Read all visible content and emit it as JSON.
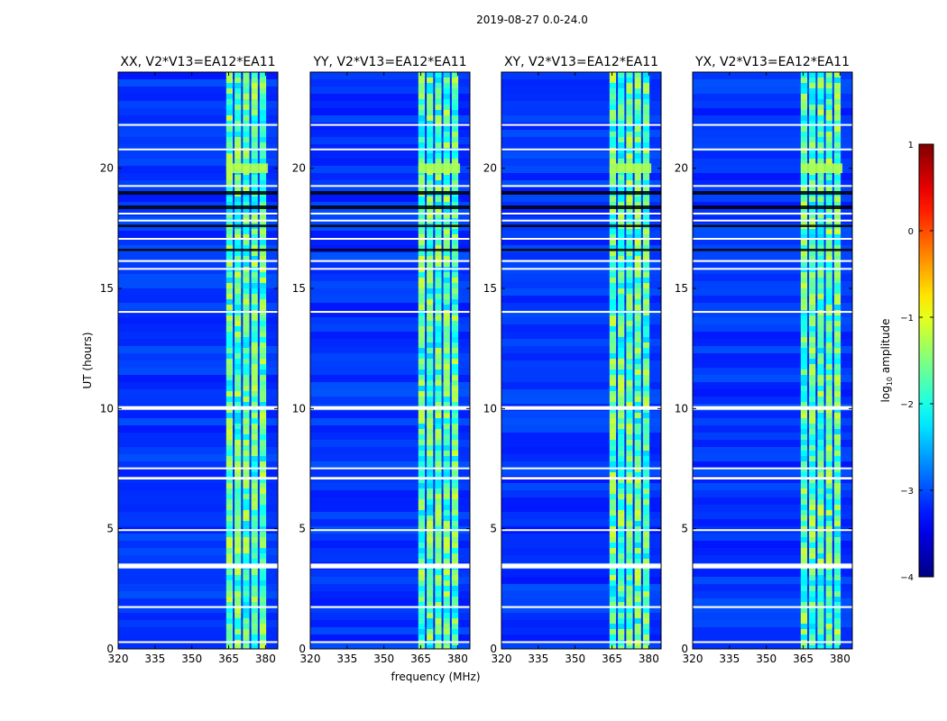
{
  "figure": {
    "suptitle": "2019-08-27 0.0-24.0"
  },
  "chart_data": {
    "type": "heatmap",
    "panels": [
      {
        "title": "XX, V2*V13=EA12*EA11"
      },
      {
        "title": "YY, V2*V13=EA12*EA11"
      },
      {
        "title": "XY, V2*V13=EA12*EA11"
      },
      {
        "title": "YX, V2*V13=EA12*EA11"
      }
    ],
    "xlabel": "frequency (MHz)",
    "ylabel": "UT (hours)",
    "xlim": [
      320,
      385
    ],
    "ylim": [
      0,
      24
    ],
    "x_ticks": [
      320,
      335,
      350,
      365,
      380
    ],
    "y_ticks": [
      0,
      5,
      10,
      15,
      20
    ],
    "colorbar": {
      "label_prefix": "log",
      "label_sub": "10",
      "label_suffix": " amplitude",
      "range": [
        -4,
        1
      ],
      "ticks": [
        "1",
        "0",
        "−1",
        "−2",
        "−3",
        "−4"
      ],
      "colormap": "jet"
    },
    "rfi_band_mhz": [
      364,
      381
    ],
    "flagged_ut_ranges_hours": [
      [
        0.25,
        0.32
      ],
      [
        1.7,
        1.78
      ],
      [
        3.35,
        3.55
      ],
      [
        4.92,
        4.98
      ],
      [
        7.05,
        7.15
      ],
      [
        7.48,
        7.55
      ],
      [
        9.95,
        10.1
      ],
      [
        14.0,
        14.06
      ],
      [
        15.8,
        15.85
      ],
      [
        16.1,
        16.18
      ],
      [
        17.05,
        17.1
      ],
      [
        17.8,
        17.86
      ],
      [
        18.1,
        18.15
      ],
      [
        19.25,
        19.3
      ],
      [
        20.75,
        20.82
      ],
      [
        21.8,
        21.84
      ]
    ],
    "dark_ut_ranges_hours": [
      [
        18.3,
        18.45
      ],
      [
        18.9,
        19.05
      ],
      [
        17.55,
        17.65
      ],
      [
        16.55,
        16.65
      ]
    ]
  }
}
